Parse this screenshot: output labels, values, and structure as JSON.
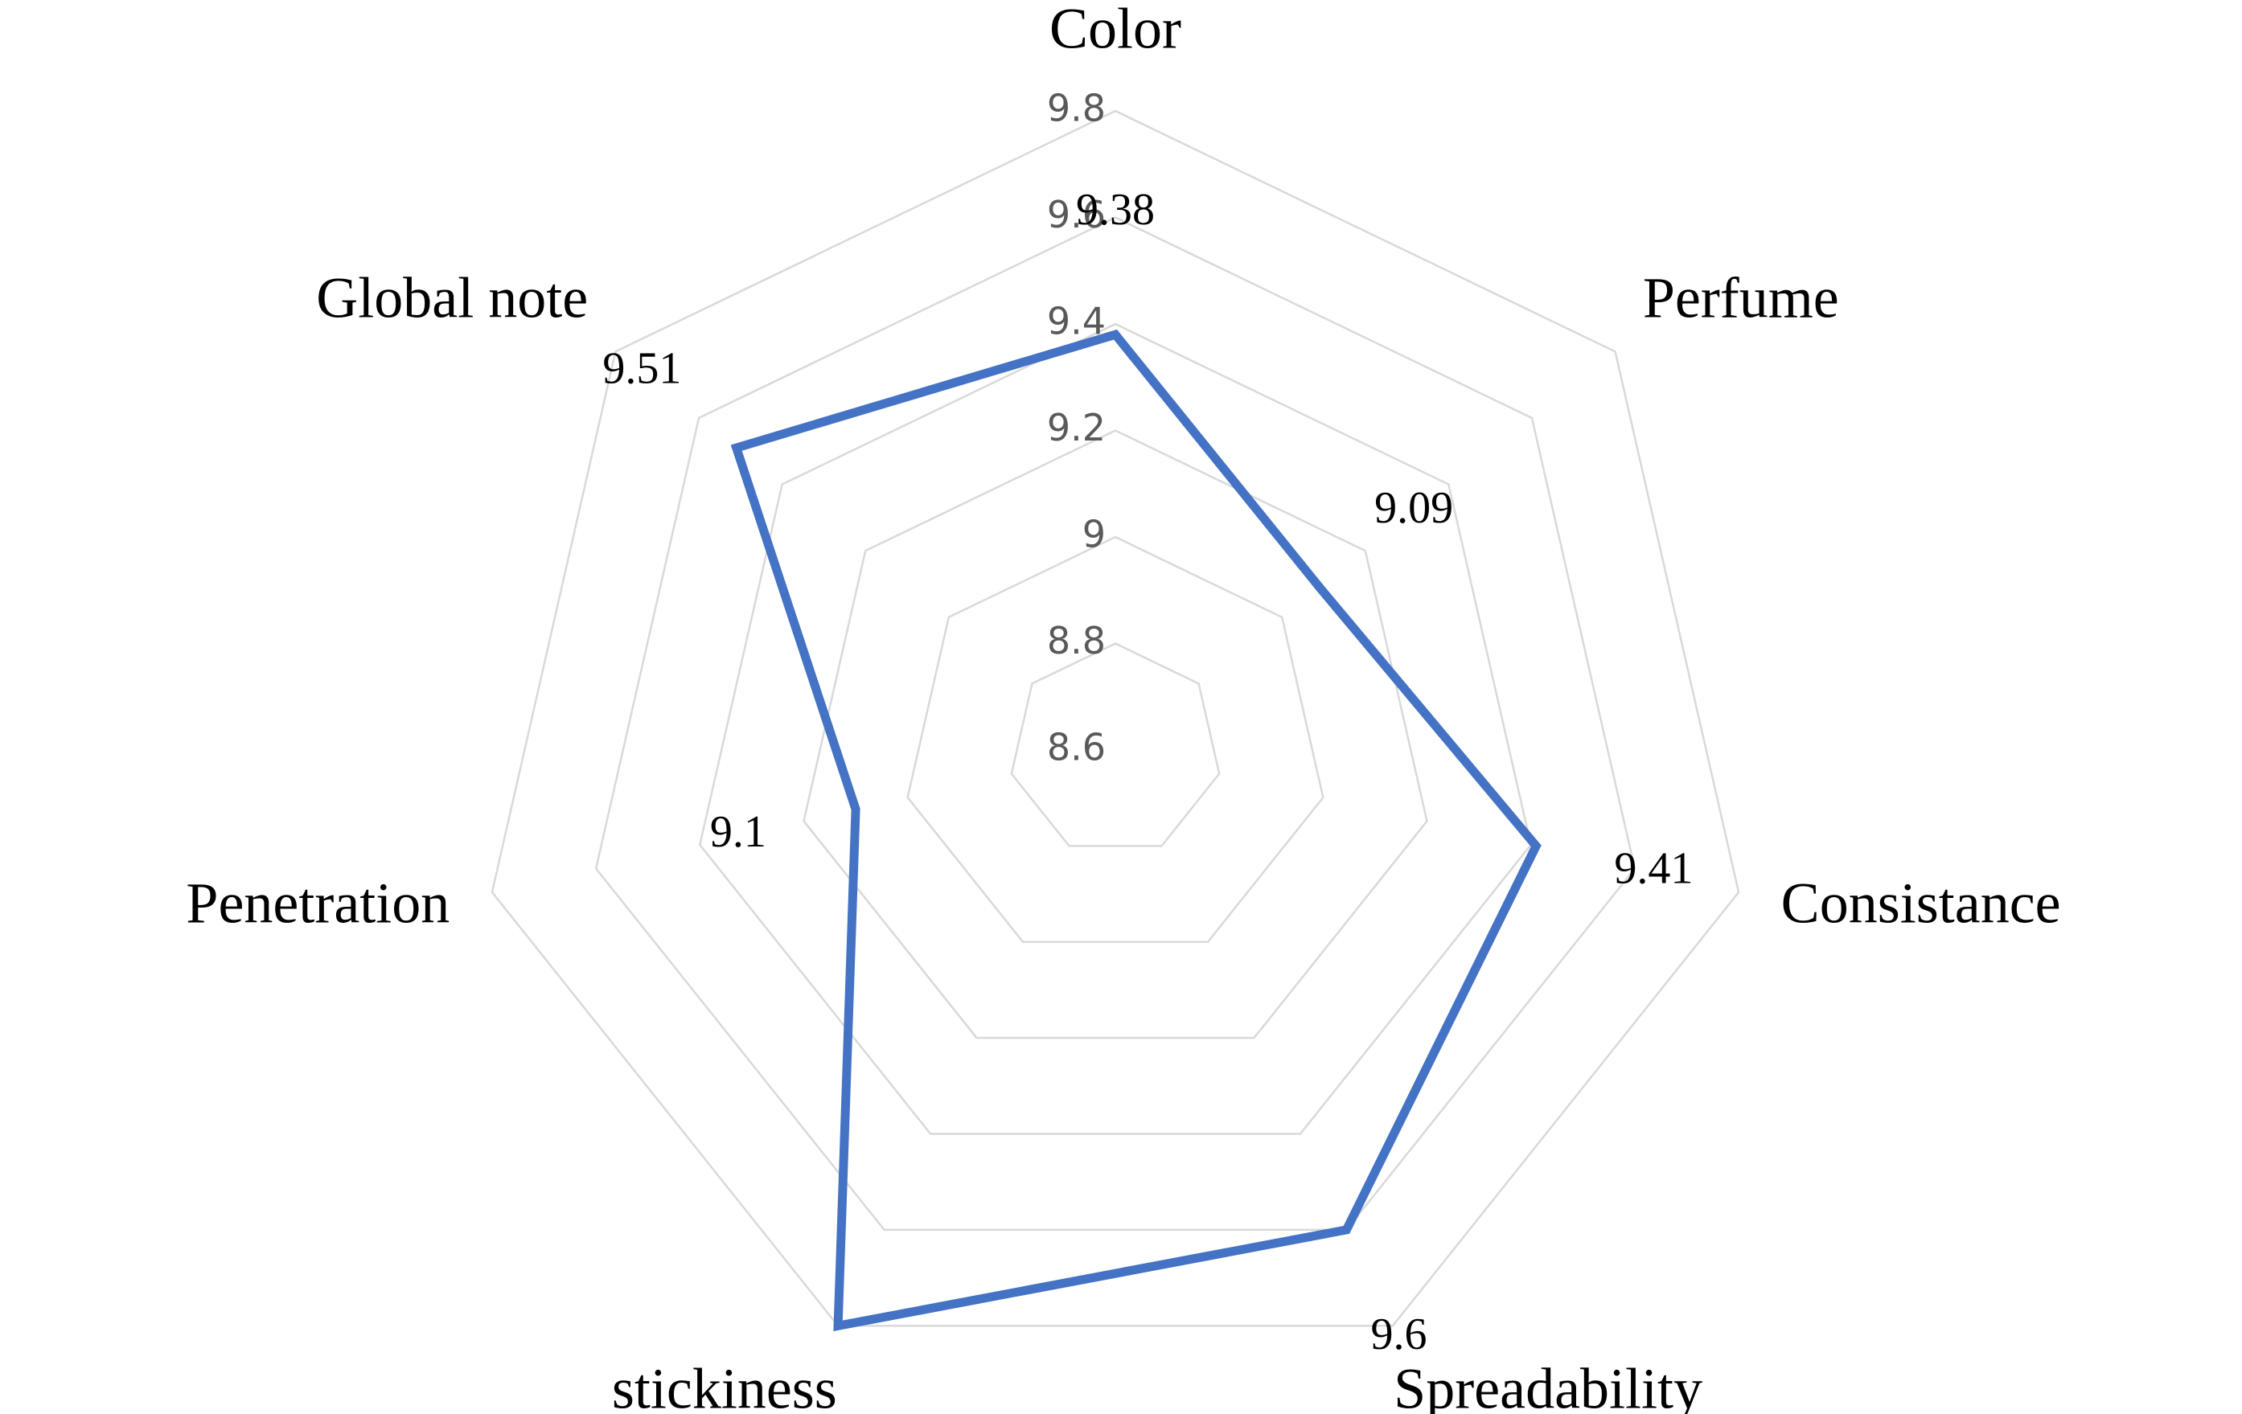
{
  "chart_data": {
    "type": "radar",
    "categories": [
      "Color",
      "Perfume",
      "Consistance",
      "Spreadability",
      "stickiness",
      "Penetration",
      "Global note"
    ],
    "values": [
      9.38,
      9.09,
      9.41,
      9.6,
      9.8,
      9.1,
      9.51
    ],
    "color": "#4472c4",
    "ylim": [
      8.6,
      9.8
    ],
    "yticks": [
      8.6,
      8.8,
      9,
      9.2,
      9.4,
      9.6,
      9.8
    ],
    "grid": true
  }
}
